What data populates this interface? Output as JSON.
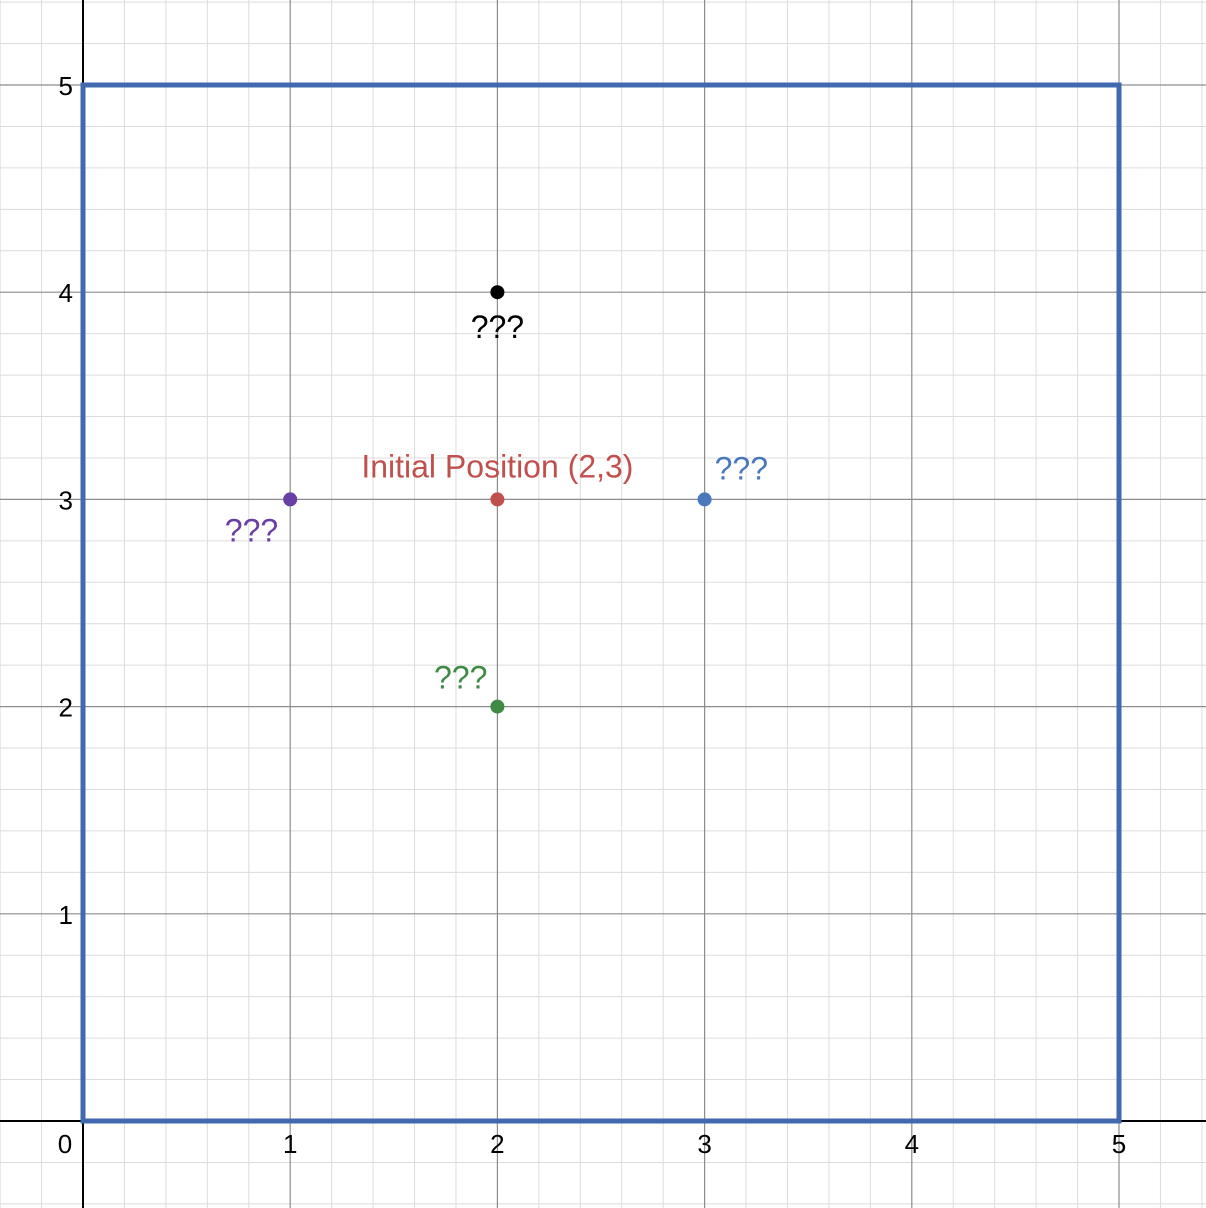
{
  "chart_data": {
    "type": "scatter",
    "title": "",
    "xlabel": "",
    "ylabel": "",
    "xlim": [
      -0.4,
      5.42
    ],
    "ylim": [
      -0.42,
      5.4
    ],
    "grid": true,
    "minor_grid_step": 0.2,
    "major_grid_step": 1,
    "x_ticks": [
      "0",
      "1",
      "2",
      "3",
      "4",
      "5"
    ],
    "y_ticks": [
      "1",
      "2",
      "3",
      "4",
      "5"
    ],
    "colors": {
      "boundary": "#4169b0",
      "red": "#c0504d",
      "blue": "#4a78bd",
      "purple": "#6a3fa5",
      "green": "#3f8a45",
      "black": "#000000",
      "minor_grid": "#dcdcdc",
      "major_grid": "#8c8c8c"
    },
    "boundary": {
      "x": [
        0,
        5
      ],
      "y": [
        0,
        5
      ]
    },
    "points": [
      {
        "x": 2,
        "y": 3,
        "label": "Initial Position (2,3)",
        "color": "#c0504d"
      },
      {
        "x": 2,
        "y": 4,
        "label": "???",
        "color": "#000000"
      },
      {
        "x": 3,
        "y": 3,
        "label": "???",
        "color": "#4a78bd"
      },
      {
        "x": 1,
        "y": 3,
        "label": "???",
        "color": "#6a3fa5"
      },
      {
        "x": 2,
        "y": 2,
        "label": "???",
        "color": "#3f8a45"
      }
    ]
  }
}
